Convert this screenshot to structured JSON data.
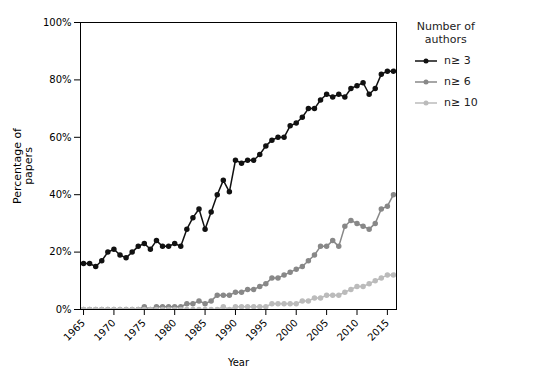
{
  "chart_data": {
    "type": "line",
    "xlabel": "Year",
    "ylabel": "Percentage of\npapers",
    "legend_title": "Number of\nauthors",
    "legend": "right",
    "grid": false,
    "x": [
      1965,
      1966,
      1967,
      1968,
      1969,
      1970,
      1971,
      1972,
      1973,
      1974,
      1975,
      1976,
      1977,
      1978,
      1979,
      1980,
      1981,
      1982,
      1983,
      1984,
      1985,
      1986,
      1987,
      1988,
      1989,
      1990,
      1991,
      1992,
      1993,
      1994,
      1995,
      1996,
      1997,
      1998,
      1999,
      2000,
      2001,
      2002,
      2003,
      2004,
      2005,
      2006,
      2007,
      2008,
      2009,
      2010,
      2011,
      2012,
      2013,
      2014,
      2015,
      2016
    ],
    "series": [
      {
        "name": "n≥ 3",
        "color": "#111111",
        "marker": "circle",
        "values": [
          16,
          16,
          15,
          17,
          20,
          21,
          19,
          18,
          20,
          22,
          23,
          21,
          24,
          22,
          22,
          23,
          22,
          28,
          32,
          35,
          28,
          34,
          40,
          45,
          41,
          52,
          51,
          52,
          52,
          54,
          57,
          59,
          60,
          60,
          64,
          65,
          67,
          70,
          70,
          73,
          75,
          74,
          75,
          74,
          77,
          78,
          79,
          75,
          77,
          82,
          83,
          83
        ]
      },
      {
        "name": "n≥ 6",
        "color": "#888888",
        "marker": "circle",
        "values": [
          0,
          0,
          0,
          0,
          0,
          0,
          0,
          0,
          0,
          0,
          1,
          0,
          1,
          1,
          1,
          1,
          1,
          2,
          2,
          3,
          2,
          3,
          5,
          5,
          5,
          6,
          6,
          7,
          7,
          8,
          9,
          11,
          11,
          12,
          13,
          14,
          15,
          17,
          19,
          22,
          22,
          24,
          22,
          29,
          31,
          30,
          29,
          28,
          30,
          35,
          36,
          40
        ]
      },
      {
        "name": "n≥ 10",
        "color": "#bbbbbb",
        "marker": "circle",
        "values": [
          0,
          0,
          0,
          0,
          0,
          0,
          0,
          0,
          0,
          0,
          0,
          0,
          0,
          0,
          0,
          0,
          0,
          0,
          0,
          0,
          0,
          0,
          0,
          1,
          0,
          1,
          1,
          1,
          1,
          1,
          1,
          2,
          2,
          2,
          2,
          2,
          3,
          3,
          4,
          4,
          5,
          5,
          5,
          6,
          7,
          8,
          8,
          9,
          10,
          11,
          12,
          12
        ]
      }
    ],
    "xlim": [
      1964.5,
      2016.5
    ],
    "xticks": [
      1965,
      1970,
      1975,
      1980,
      1985,
      1990,
      1995,
      2000,
      2005,
      2010,
      2015
    ],
    "ylim": [
      0,
      100
    ],
    "yticks": [
      {
        "value": 0,
        "label": "0%"
      },
      {
        "value": 20,
        "label": "20%"
      },
      {
        "value": 40,
        "label": "40%"
      },
      {
        "value": 60,
        "label": "60%"
      },
      {
        "value": 80,
        "label": "80%"
      },
      {
        "value": 100,
        "label": "100%"
      }
    ]
  }
}
